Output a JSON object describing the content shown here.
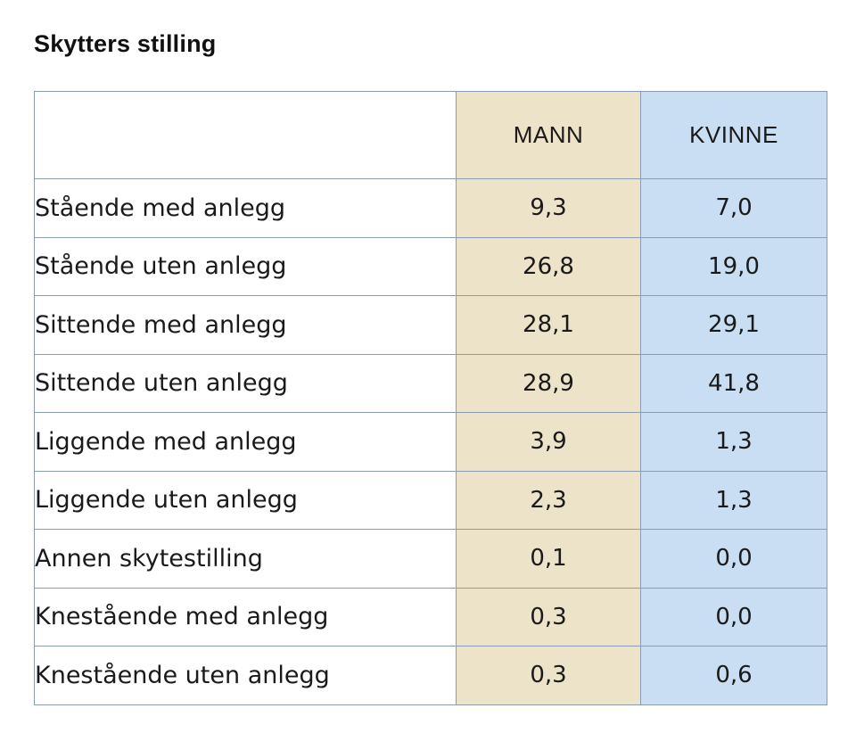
{
  "chart_data": {
    "type": "table",
    "title": "Skytters stilling",
    "columns": [
      "",
      "MANN",
      "KVINNE"
    ],
    "rows": [
      {
        "label": "Stående med anlegg",
        "mann": "9,3",
        "kvinne": "7,0"
      },
      {
        "label": "Stående uten anlegg",
        "mann": "26,8",
        "kvinne": "19,0"
      },
      {
        "label": "Sittende med anlegg",
        "mann": "28,1",
        "kvinne": "29,1"
      },
      {
        "label": "Sittende uten anlegg",
        "mann": "28,9",
        "kvinne": "41,8"
      },
      {
        "label": "Liggende med anlegg",
        "mann": "3,9",
        "kvinne": "1,3"
      },
      {
        "label": "Liggende uten anlegg",
        "mann": "2,3",
        "kvinne": "1,3"
      },
      {
        "label": "Annen skytestilling",
        "mann": "0,1",
        "kvinne": "0,0"
      },
      {
        "label": "Knestående med anlegg",
        "mann": "0,3",
        "kvinne": "0,0"
      },
      {
        "label": "Knestående uten anlegg",
        "mann": "0,3",
        "kvinne": "0,6"
      }
    ]
  },
  "colors": {
    "mann_column": "#ede3c9",
    "kvinne_column": "#c9def2",
    "grid_lines": "#8a9bb4"
  }
}
